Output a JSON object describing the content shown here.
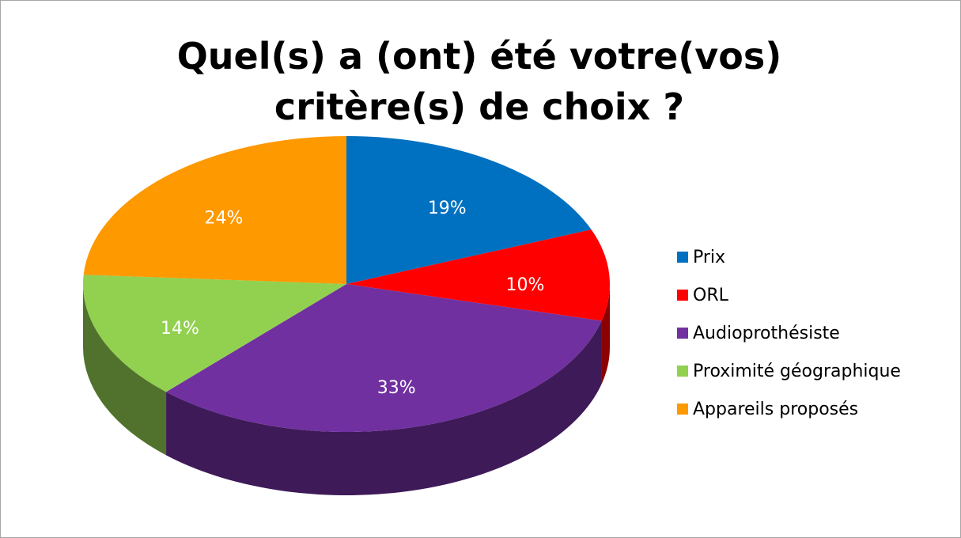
{
  "chart_data": {
    "type": "pie3d",
    "title": "Quel(s) a (ont) été votre(vos) critère(s) de choix ?",
    "categories": [
      "Prix",
      "ORL",
      "Audioprothésiste",
      "Proximité géographique",
      "Appareils proposés"
    ],
    "values": [
      19,
      10,
      33,
      14,
      24
    ],
    "value_labels": [
      "19%",
      "10%",
      "33%",
      "14%",
      "24%"
    ],
    "colors": [
      "#0070c0",
      "#ff0000",
      "#7030a0",
      "#92d050",
      "#ff9900"
    ],
    "legend": "right"
  }
}
